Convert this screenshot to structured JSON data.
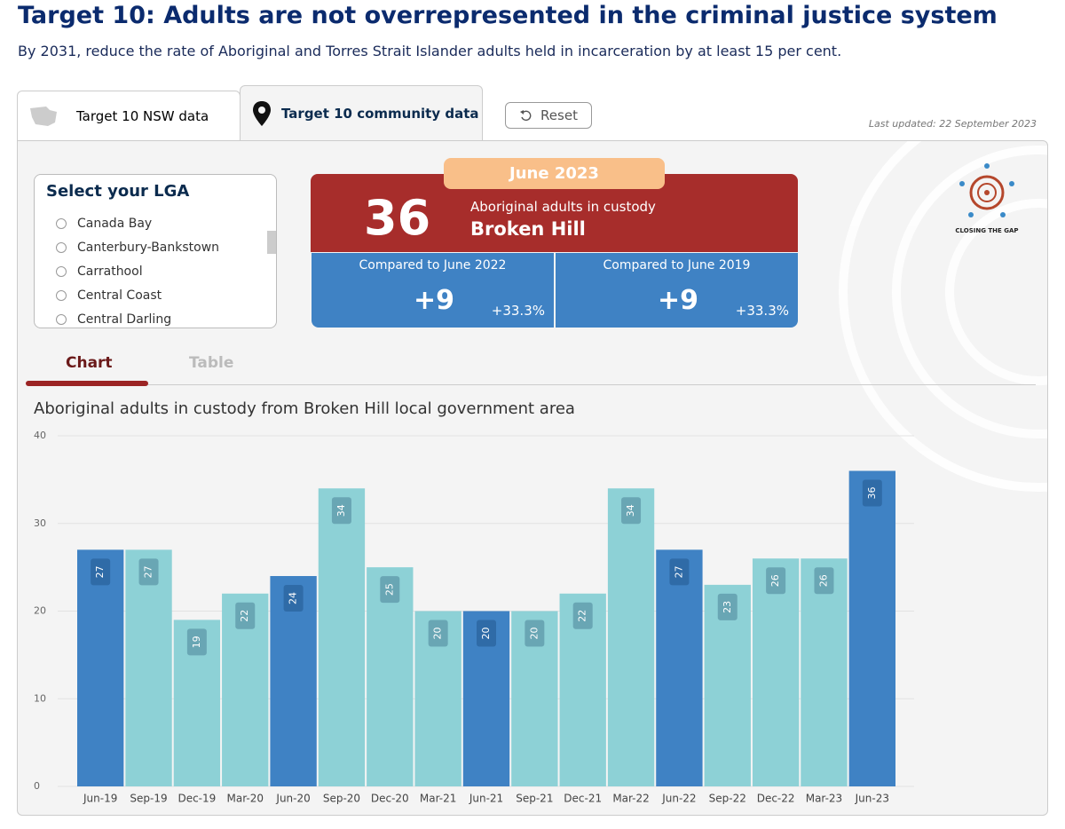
{
  "header": {
    "title": "Target 10: Adults are not overrepresented in the criminal justice system",
    "subtitle": "By 2031, reduce the rate of Aboriginal and Torres Strait Islander adults held in incarceration by at least 15 per cent."
  },
  "tabs": [
    "Target 10 NSW data",
    "Target 10 community data"
  ],
  "reset": "Reset",
  "last_updated": "Last updated: 22 September 2023",
  "lga_selector": {
    "title": "Select your LGA",
    "options": [
      "Canada Bay",
      "Canterbury-Bankstown",
      "Carrathool",
      "Central Coast",
      "Central Darling"
    ]
  },
  "summary": {
    "period": "June 2023",
    "value": "36",
    "label": "Aboriginal adults in custody",
    "lga": "Broken Hill",
    "comparisons": [
      {
        "label": "Compared to June 2022",
        "change": "+9",
        "percent": "+33.3%"
      },
      {
        "label": "Compared to June 2019",
        "change": "+9",
        "percent": "+33.3%"
      }
    ]
  },
  "logo_text": "CLOSING THE GAP",
  "view_tabs": [
    "Chart",
    "Table"
  ],
  "chart_data": {
    "type": "bar",
    "title": "Aboriginal adults in custody from Broken Hill local government area",
    "categories": [
      "Jun-19",
      "Sep-19",
      "Dec-19",
      "Mar-20",
      "Jun-20",
      "Sep-20",
      "Dec-20",
      "Mar-21",
      "Jun-21",
      "Sep-21",
      "Dec-21",
      "Mar-22",
      "Jun-22",
      "Sep-22",
      "Dec-22",
      "Mar-23",
      "Jun-23"
    ],
    "values": [
      27,
      27,
      19,
      22,
      24,
      34,
      25,
      20,
      20,
      20,
      22,
      34,
      27,
      23,
      26,
      26,
      36
    ],
    "colors": [
      "#3f82c4",
      "#8dd1d6",
      "#8dd1d6",
      "#8dd1d6",
      "#3f82c4",
      "#8dd1d6",
      "#8dd1d6",
      "#8dd1d6",
      "#3f82c4",
      "#8dd1d6",
      "#8dd1d6",
      "#8dd1d6",
      "#3f82c4",
      "#8dd1d6",
      "#8dd1d6",
      "#8dd1d6",
      "#3f82c4"
    ],
    "ylim": [
      0,
      40
    ],
    "yticks": [
      0,
      10,
      20,
      30,
      40
    ],
    "grid": true
  }
}
